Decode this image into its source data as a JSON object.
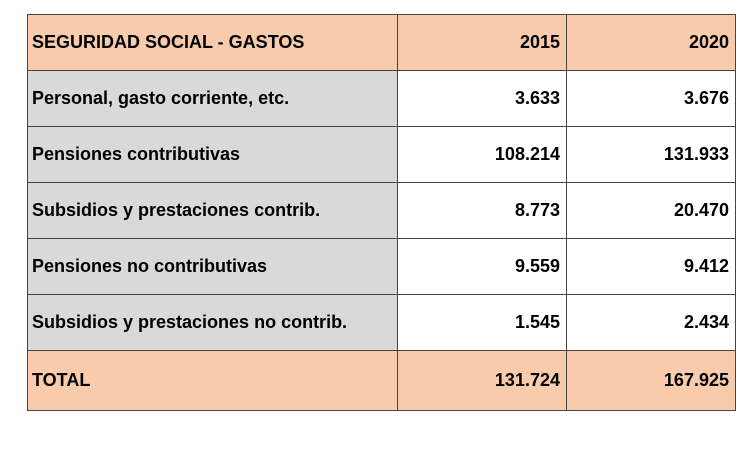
{
  "table": {
    "header": [
      "SEGURIDAD SOCIAL - GASTOS",
      "2015",
      "2020"
    ],
    "rows": [
      [
        "Personal, gasto corriente, etc.",
        "3.633",
        "3.676"
      ],
      [
        "Pensiones contributivas",
        "108.214",
        "131.933"
      ],
      [
        "Subsidios y prestaciones contrib.",
        "8.773",
        "20.470"
      ],
      [
        "Pensiones no contributivas",
        "9.559",
        "9.412"
      ],
      [
        "Subsidios y prestaciones no contrib.",
        "1.545",
        "2.434"
      ]
    ],
    "total": [
      "TOTAL",
      "131.724",
      "167.925"
    ]
  }
}
